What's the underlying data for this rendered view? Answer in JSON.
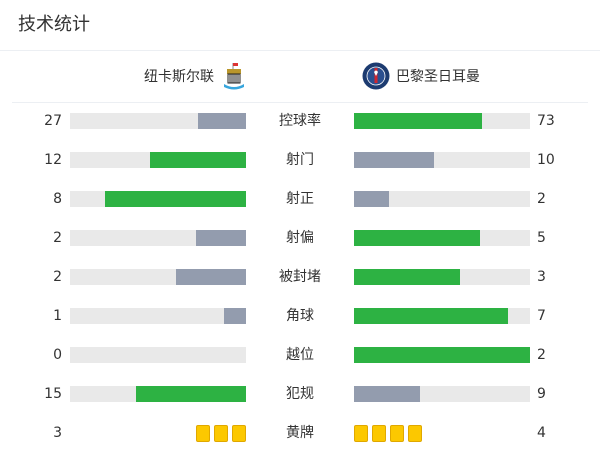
{
  "title": "技术统计",
  "home": {
    "name": "纽卡斯尔联",
    "crest": "newcastle-crest-icon"
  },
  "away": {
    "name": "巴黎圣日耳曼",
    "crest": "psg-crest-icon"
  },
  "colors": {
    "leader": "#2db243",
    "trailer": "#939cae",
    "track": "#e9e9e9",
    "card": "#fcc800"
  },
  "stats": [
    {
      "label": "控球率",
      "home": 27,
      "away": 73
    },
    {
      "label": "射门",
      "home": 12,
      "away": 10
    },
    {
      "label": "射正",
      "home": 8,
      "away": 2
    },
    {
      "label": "射偏",
      "home": 2,
      "away": 5
    },
    {
      "label": "被封堵",
      "home": 2,
      "away": 3
    },
    {
      "label": "角球",
      "home": 1,
      "away": 7
    },
    {
      "label": "越位",
      "home": 0,
      "away": 2
    },
    {
      "label": "犯规",
      "home": 15,
      "away": 9
    }
  ],
  "cards": {
    "label": "黄牌",
    "home": 3,
    "away": 4
  }
}
